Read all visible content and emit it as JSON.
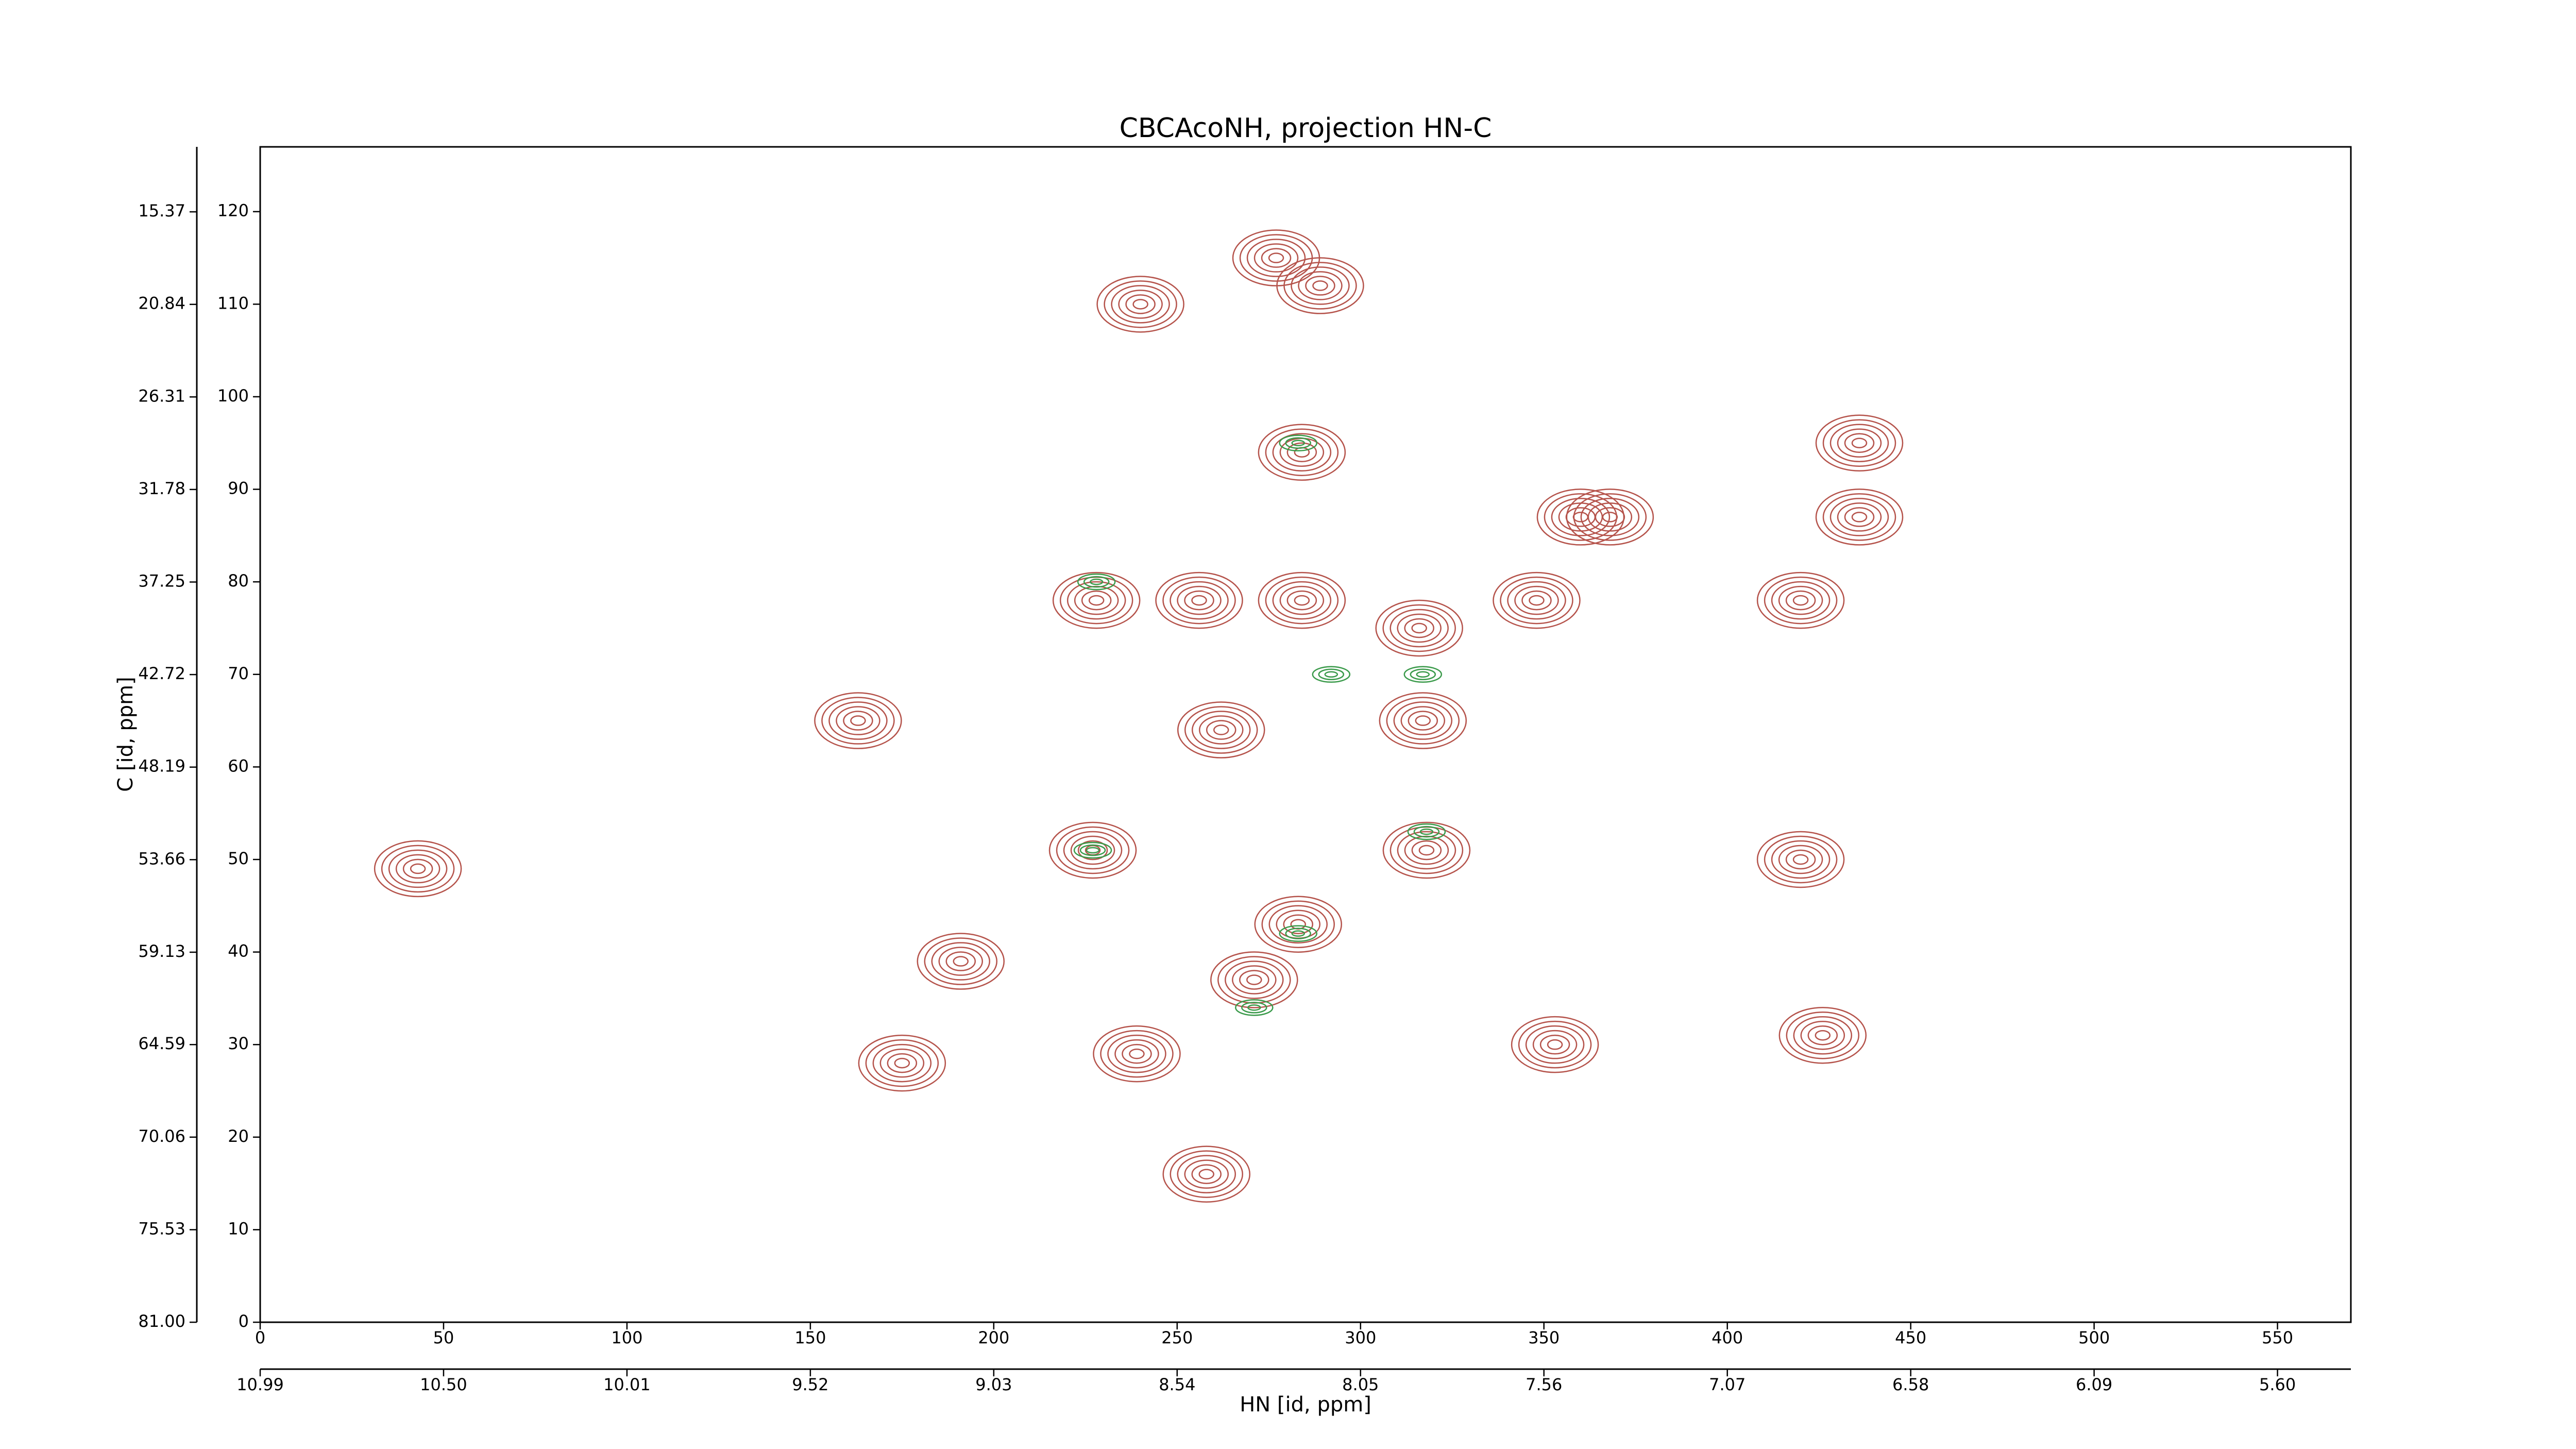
{
  "chart_data": {
    "type": "contour",
    "title": "CBCAcoNH, projection HN-C",
    "xlabel": "HN [id, ppm]",
    "ylabel": "C [id, ppm]",
    "xlim": [
      0,
      570
    ],
    "xticks": [
      0,
      50,
      100,
      150,
      200,
      250,
      300,
      350,
      400,
      450,
      500,
      550
    ],
    "ylim": [
      0,
      127
    ],
    "yticks": [
      0,
      10,
      20,
      30,
      40,
      50,
      60,
      70,
      80,
      90,
      100,
      110,
      120
    ],
    "x2lim": [
      10.99,
      5.404
    ],
    "x2ticks": [
      10.99,
      {
        "value": 10.5,
        "label": "10.50"
      },
      10.01,
      9.52,
      9.03,
      8.54,
      8.05,
      7.56,
      7.07,
      6.58,
      6.09,
      {
        "value": 5.6,
        "label": "5.60"
      }
    ],
    "y2lim": [
      81,
      11.53
    ],
    "y2ticks": [
      {
        "value": 81,
        "label": "81.00"
      },
      75.53,
      70.06,
      64.59,
      59.13,
      53.66,
      48.19,
      42.72,
      37.25,
      31.78,
      26.31,
      20.84,
      15.37
    ],
    "series": [
      {
        "color": "#b5534b",
        "x": [
          240,
          277,
          289,
          228,
          256,
          284,
          316,
          348,
          360,
          368,
          436,
          436,
          420,
          227,
          283,
          271,
          318,
          420,
          426,
          43,
          163,
          262,
          175,
          258,
          239,
          353,
          191,
          317,
          284
        ],
        "values": [
          110,
          115,
          112,
          78,
          78,
          78,
          75,
          78,
          87,
          87,
          95,
          87,
          78,
          51,
          43,
          37,
          51,
          50,
          31,
          49,
          65,
          64,
          28,
          16,
          29,
          30,
          39,
          65,
          94
        ]
      },
      {
        "color": "#3a9a4a",
        "x": [
          228,
          283,
          292,
          317,
          227,
          283,
          271,
          318
        ],
        "values": [
          80,
          95,
          70,
          70,
          51,
          42,
          34,
          53
        ]
      }
    ]
  }
}
